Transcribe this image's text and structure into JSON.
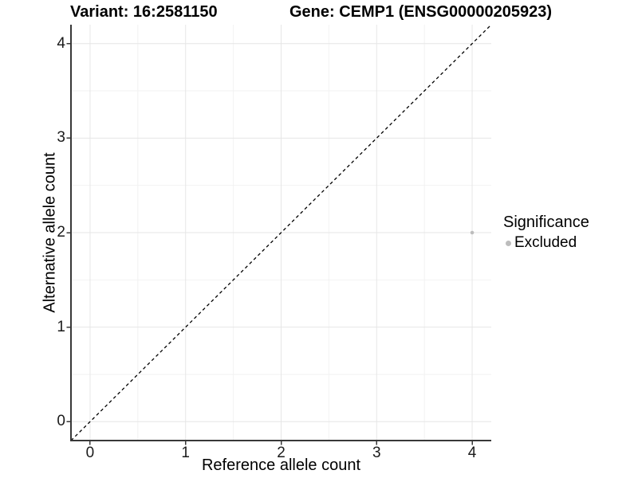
{
  "chart_data": {
    "type": "scatter",
    "titles": {
      "left": "Variant: 16:2581150",
      "right": "Gene: CEMP1 (ENSG00000205923)"
    },
    "xlabel": "Reference allele count",
    "ylabel": "Alternative allele count",
    "xlim": [
      -0.2,
      4.2
    ],
    "ylim": [
      -0.2,
      4.2
    ],
    "xticks": [
      0,
      1,
      2,
      3,
      4
    ],
    "yticks": [
      0,
      1,
      2,
      3,
      4
    ],
    "xminor": [
      0.5,
      1.5,
      2.5,
      3.5
    ],
    "yminor": [
      0.5,
      1.5,
      2.5,
      3.5
    ],
    "grid": true,
    "reference_line": {
      "slope": 1,
      "intercept": 0,
      "style": "dashed",
      "color": "#000000"
    },
    "series": [
      {
        "name": "Excluded",
        "color": "#bdbdbd",
        "points": [
          {
            "x": 4,
            "y": 2
          }
        ]
      }
    ],
    "legend": {
      "title": "Significance",
      "position": "right",
      "entries": [
        {
          "label": "Excluded",
          "color": "#bdbdbd"
        }
      ]
    },
    "colors": {
      "grid_major": "#e6e6e6",
      "grid_minor": "#f2f2f2",
      "axis": "#383838",
      "tick_text": "#1a1a1a"
    }
  }
}
